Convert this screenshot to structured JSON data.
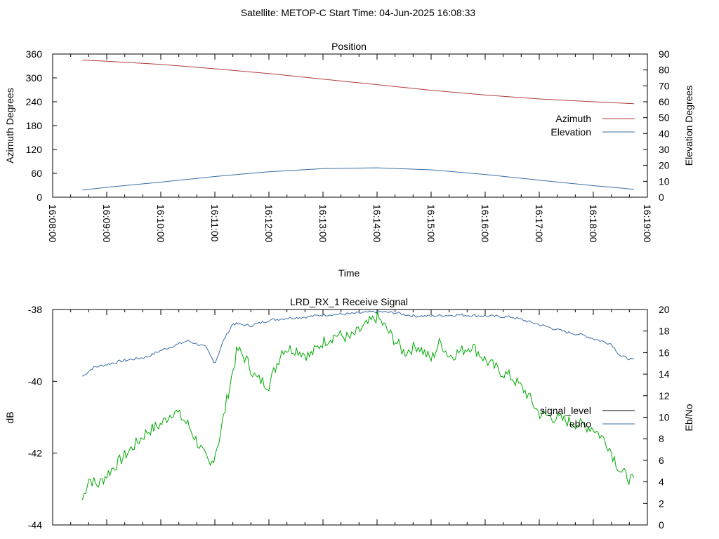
{
  "header": {
    "title": "Satellite: METOP-C    Start Time: 04-Jun-2025 16:08:33"
  },
  "chart_data": [
    {
      "type": "line",
      "title": "Position",
      "xlabel": "Time",
      "ylabel": "Azimuth Degrees",
      "y2label": "Elevation Degrees",
      "x_ticks": [
        "16:08:00",
        "16:09:00",
        "16:10:00",
        "16:11:00",
        "16:12:00",
        "16:13:00",
        "16:14:00",
        "16:15:00",
        "16:16:00",
        "16:17:00",
        "16:18:00",
        "16:19:00"
      ],
      "x_range_minutes": [
        0,
        11
      ],
      "ylim": [
        0,
        360
      ],
      "y_ticks": [
        0,
        60,
        120,
        180,
        240,
        300,
        360
      ],
      "y2lim": [
        0,
        90
      ],
      "y2_ticks": [
        0,
        10,
        20,
        30,
        40,
        50,
        60,
        70,
        80,
        90
      ],
      "legend_position": "right",
      "grid": false,
      "series": [
        {
          "name": "Azimuth",
          "axis": "y",
          "color": "#b03c3c",
          "x": [
            "16:08:33",
            "16:09:00",
            "16:10:00",
            "16:11:00",
            "16:12:00",
            "16:13:00",
            "16:14:00",
            "16:15:00",
            "16:16:00",
            "16:17:00",
            "16:18:00",
            "16:18:45"
          ],
          "values": [
            345,
            342,
            334,
            323,
            311,
            297,
            283,
            269,
            257,
            247,
            240,
            235
          ]
        },
        {
          "name": "Elevation",
          "axis": "y2",
          "color": "#3b6ea5",
          "x": [
            "16:08:33",
            "16:09:00",
            "16:10:00",
            "16:11:00",
            "16:12:00",
            "16:13:00",
            "16:14:00",
            "16:15:00",
            "16:16:00",
            "16:17:00",
            "16:18:00",
            "16:18:45"
          ],
          "values": [
            4.5,
            6.2,
            9.5,
            13.0,
            16.0,
            18.0,
            18.5,
            17.2,
            14.3,
            10.7,
            7.3,
            5.0
          ]
        }
      ]
    },
    {
      "type": "line",
      "title": "LRD_RX_1 Receive Signal",
      "xlabel": "",
      "ylabel": "dB",
      "y2label": "Eb/No",
      "ylim": [
        -44,
        -38
      ],
      "y_ticks": [
        -44,
        -42,
        -40,
        -38
      ],
      "y2lim": [
        0,
        20
      ],
      "y2_ticks": [
        0,
        2,
        4,
        6,
        8,
        10,
        12,
        14,
        16,
        18,
        20
      ],
      "legend_position": "right",
      "grid": false,
      "series": [
        {
          "name": "signal_level",
          "axis": "y",
          "color": "#000000",
          "legend_only": true,
          "x": [],
          "values": []
        },
        {
          "name": "ebno",
          "axis": "y2",
          "color": "#3b6ea5",
          "x": [
            "16:08:33",
            "16:08:45",
            "16:09:15",
            "16:09:45",
            "16:10:00",
            "16:10:30",
            "16:10:50",
            "16:11:00",
            "16:11:10",
            "16:11:20",
            "16:11:40",
            "16:12:00",
            "16:12:20",
            "16:12:40",
            "16:13:00",
            "16:13:30",
            "16:13:45",
            "16:14:00",
            "16:14:20",
            "16:14:40",
            "16:15:00",
            "16:15:30",
            "16:16:00",
            "16:16:30",
            "16:17:00",
            "16:17:30",
            "16:17:50",
            "16:18:00",
            "16:18:20",
            "16:18:30",
            "16:18:45"
          ],
          "values": [
            13.8,
            14.6,
            15.2,
            15.6,
            16.2,
            17.1,
            16.5,
            15.0,
            17.2,
            18.7,
            18.5,
            19.0,
            19.2,
            19.3,
            19.5,
            19.6,
            19.7,
            19.8,
            19.7,
            19.4,
            19.4,
            19.5,
            19.4,
            19.3,
            18.6,
            17.9,
            17.6,
            17.3,
            16.8,
            15.7,
            15.3
          ]
        },
        {
          "name": "",
          "axis": "y",
          "color": "#00aa00",
          "x": [
            "16:08:33",
            "16:08:40",
            "16:08:50",
            "16:09:00",
            "16:09:15",
            "16:09:30",
            "16:09:45",
            "16:10:00",
            "16:10:15",
            "16:10:30",
            "16:10:45",
            "16:10:55",
            "16:11:05",
            "16:11:15",
            "16:11:25",
            "16:11:35",
            "16:11:45",
            "16:12:00",
            "16:12:15",
            "16:12:30",
            "16:12:45",
            "16:13:00",
            "16:13:15",
            "16:13:30",
            "16:13:45",
            "16:14:00",
            "16:14:15",
            "16:14:30",
            "16:14:45",
            "16:15:00",
            "16:15:10",
            "16:15:20",
            "16:15:30",
            "16:15:45",
            "16:16:00",
            "16:16:15",
            "16:16:30",
            "16:16:45",
            "16:17:00",
            "16:17:15",
            "16:17:30",
            "16:17:45",
            "16:18:00",
            "16:18:15",
            "16:18:30",
            "16:18:45"
          ],
          "values": [
            -43.3,
            -42.7,
            -42.9,
            -42.6,
            -42.2,
            -41.8,
            -41.4,
            -41.2,
            -40.8,
            -41.2,
            -41.9,
            -42.4,
            -41.6,
            -40.3,
            -39.1,
            -39.4,
            -39.9,
            -40.1,
            -39.1,
            -39.1,
            -39.3,
            -38.9,
            -38.7,
            -38.8,
            -38.5,
            -38.2,
            -38.7,
            -39.2,
            -39.0,
            -39.4,
            -38.9,
            -39.3,
            -39.2,
            -39.0,
            -39.4,
            -39.7,
            -39.9,
            -40.3,
            -40.9,
            -41.0,
            -41.1,
            -41.2,
            -41.3,
            -41.7,
            -42.5,
            -42.8
          ]
        }
      ]
    }
  ]
}
